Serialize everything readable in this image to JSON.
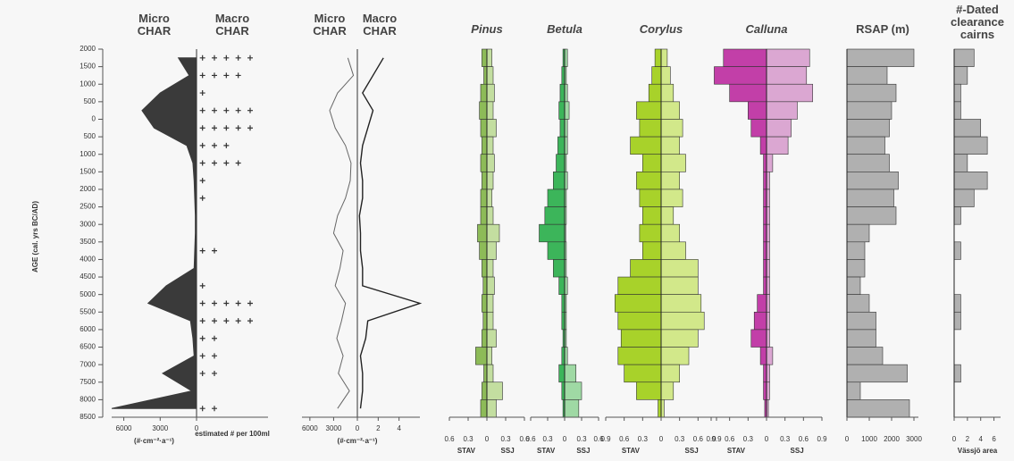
{
  "chart_data": [
    {
      "type": "char",
      "ylabel": "AGE (cal. yrs BC/AD)",
      "ylim": [
        -2000,
        8500
      ],
      "yticks": [
        {
          "value": -2000,
          "label": "2000"
        },
        {
          "value": -1500,
          "label": "1500"
        },
        {
          "value": -1000,
          "label": "1000"
        },
        {
          "value": -500,
          "label": "500"
        },
        0,
        500,
        1000,
        1500,
        2000,
        2500,
        3000,
        3500,
        4000,
        4500,
        5000,
        5500,
        6000,
        6500,
        7000,
        7500,
        8000,
        8500
      ],
      "y": [
        -1750,
        -1250,
        -750,
        -250,
        250,
        750,
        1250,
        1750,
        2250,
        2750,
        3250,
        3750,
        4250,
        4750,
        5250,
        5750,
        6250,
        6750,
        7250,
        7750,
        8250
      ],
      "series": [
        {
          "name": "Micro CHAR",
          "style": "area",
          "color": "#3a3a3a",
          "xlim": [
            0,
            7000
          ],
          "xticks": [
            6000,
            3000,
            0
          ],
          "xlabel": "(#·cm⁻²·a⁻¹)",
          "values": [
            1500,
            600,
            3000,
            4500,
            3500,
            800,
            300,
            200,
            150,
            100,
            100,
            150,
            200,
            2500,
            4000,
            500,
            300,
            200,
            2800,
            400,
            7000
          ]
        },
        {
          "name": "Macro CHAR",
          "style": "crosses",
          "color": "#333333",
          "xlim": [
            0,
            6
          ],
          "xlabel": "estimated # per 100ml",
          "values": [
            5,
            4,
            1,
            5,
            5,
            3,
            4,
            1,
            1,
            0,
            0,
            2,
            0,
            1,
            5,
            5,
            2,
            2,
            2,
            0,
            2
          ]
        }
      ]
    },
    {
      "type": "charline",
      "xlabel": "(#·cm⁻²·a⁻¹)",
      "y": [
        -1750,
        -1250,
        -750,
        -250,
        250,
        750,
        1250,
        1750,
        2250,
        2750,
        3250,
        3750,
        4250,
        4750,
        5250,
        5750,
        6250,
        6750,
        7250,
        7750,
        8250
      ],
      "series": [
        {
          "name": "Micro CHAR",
          "color": "#666666",
          "xlim": [
            0,
            7000
          ],
          "xticks": [
            6000,
            3000,
            0
          ],
          "values": [
            1200,
            500,
            2500,
            3500,
            2800,
            1500,
            800,
            900,
            1500,
            2500,
            3000,
            1800,
            2200,
            2800,
            1500,
            2000,
            2600,
            1800,
            2400,
            1000,
            2500
          ]
        },
        {
          "name": "Macro CHAR",
          "color": "#222222",
          "xlim": [
            0,
            6
          ],
          "xticks": [
            2,
            4
          ],
          "values": [
            2.5,
            1.5,
            0.5,
            1.5,
            1,
            0.5,
            0.3,
            0.5,
            0.5,
            0.2,
            0.3,
            0.3,
            0.5,
            0.5,
            6,
            1,
            0.8,
            0.3,
            0.5,
            0.5,
            0.3
          ]
        }
      ]
    },
    {
      "type": "pollen",
      "title": "Pinus",
      "xlim": [
        0,
        0.6
      ],
      "xticks": [
        0,
        0.3,
        0.6
      ],
      "y": [
        -1750,
        -1250,
        -750,
        -250,
        250,
        750,
        1250,
        1750,
        2250,
        2750,
        3250,
        3750,
        4250,
        4750,
        5250,
        5750,
        6250,
        6750,
        7250,
        7750,
        8250
      ],
      "series": [
        {
          "name": "STAV",
          "color": "#8dbb58",
          "values": [
            0.08,
            0.05,
            0.1,
            0.12,
            0.1,
            0.08,
            0.1,
            0.08,
            0.1,
            0.1,
            0.15,
            0.12,
            0.08,
            0.06,
            0.08,
            0.06,
            0.08,
            0.18,
            0.05,
            0.08,
            0.1
          ]
        },
        {
          "name": "SSJ",
          "color": "#c3dea0",
          "values": [
            0.08,
            0.1,
            0.12,
            0.1,
            0.15,
            0.1,
            0.12,
            0.1,
            0.08,
            0.1,
            0.2,
            0.15,
            0.1,
            0.12,
            0.1,
            0.1,
            0.15,
            0.08,
            0.1,
            0.25,
            0.15
          ]
        }
      ]
    },
    {
      "type": "pollen",
      "title": "Betula",
      "xlim": [
        0,
        0.6
      ],
      "xticks": [
        0,
        0.3,
        0.6
      ],
      "y": [
        -1750,
        -1250,
        -750,
        -250,
        250,
        750,
        1250,
        1750,
        2250,
        2750,
        3250,
        3750,
        4250,
        4750,
        5250,
        5750,
        6250,
        6750,
        7250,
        7750,
        8250
      ],
      "series": [
        {
          "name": "STAV",
          "color": "#3cb55a",
          "values": [
            0.03,
            0.05,
            0.08,
            0.1,
            0.08,
            0.12,
            0.15,
            0.2,
            0.3,
            0.35,
            0.45,
            0.3,
            0.2,
            0.1,
            0.05,
            0.05,
            0.03,
            0.05,
            0.1,
            0.05,
            0.03
          ]
        },
        {
          "name": "SSJ",
          "color": "#9fd9a4",
          "values": [
            0.05,
            0.03,
            0.05,
            0.08,
            0.05,
            0.05,
            0.03,
            0.05,
            0.03,
            0.03,
            0.02,
            0.03,
            0.03,
            0.05,
            0.03,
            0.03,
            0.03,
            0.05,
            0.2,
            0.3,
            0.25
          ]
        }
      ]
    },
    {
      "type": "pollen",
      "title": "Corylus",
      "xlim": [
        0,
        0.9
      ],
      "xticks": [
        0,
        0.3,
        0.6,
        0.9
      ],
      "y": [
        -1750,
        -1250,
        -750,
        -250,
        250,
        750,
        1250,
        1750,
        2250,
        2750,
        3250,
        3750,
        4250,
        4750,
        5250,
        5750,
        6250,
        6750,
        7250,
        7750,
        8250
      ],
      "series": [
        {
          "name": "STAV",
          "color": "#a8d22a",
          "values": [
            0.1,
            0.15,
            0.2,
            0.4,
            0.35,
            0.5,
            0.3,
            0.4,
            0.35,
            0.3,
            0.35,
            0.3,
            0.5,
            0.7,
            0.75,
            0.7,
            0.65,
            0.7,
            0.6,
            0.4,
            0.05
          ]
        },
        {
          "name": "SSJ",
          "color": "#d2e88a",
          "values": [
            0.1,
            0.15,
            0.2,
            0.3,
            0.35,
            0.3,
            0.4,
            0.3,
            0.35,
            0.2,
            0.3,
            0.4,
            0.6,
            0.6,
            0.65,
            0.7,
            0.6,
            0.45,
            0.3,
            0.2,
            0.05
          ]
        }
      ]
    },
    {
      "type": "pollen",
      "title": "Calluna",
      "xlim": [
        0,
        0.9
      ],
      "xticks": [
        0,
        0.3,
        0.6,
        0.9
      ],
      "y": [
        -1750,
        -1250,
        -750,
        -250,
        250,
        750,
        1250,
        1750,
        2250,
        2750,
        3250,
        3750,
        4250,
        4750,
        5250,
        5750,
        6250,
        6750,
        7250,
        7750,
        8250
      ],
      "series": [
        {
          "name": "STAV",
          "color": "#c23fa8",
          "values": [
            0.7,
            0.85,
            0.6,
            0.3,
            0.25,
            0.1,
            0.05,
            0.05,
            0.05,
            0.05,
            0.05,
            0.05,
            0.05,
            0.05,
            0.15,
            0.2,
            0.25,
            0.1,
            0.05,
            0.05,
            0.03
          ]
        },
        {
          "name": "SSJ",
          "color": "#dba7d2",
          "values": [
            0.7,
            0.65,
            0.75,
            0.5,
            0.4,
            0.35,
            0.1,
            0.05,
            0.05,
            0.05,
            0.05,
            0.05,
            0.05,
            0.05,
            0.05,
            0.05,
            0.05,
            0.1,
            0.05,
            0.05,
            0.03
          ]
        }
      ]
    },
    {
      "type": "bar",
      "title": "RSAP (m)",
      "color": "#b0b0b0",
      "xlim": [
        0,
        3200
      ],
      "xticks": [
        0,
        1000,
        2000,
        3000
      ],
      "y": [
        -1750,
        -1250,
        -750,
        -250,
        250,
        750,
        1250,
        1750,
        2250,
        2750,
        3250,
        3750,
        4250,
        4750,
        5250,
        5750,
        6250,
        6750,
        7250,
        7750,
        8250
      ],
      "values": [
        3000,
        1800,
        2200,
        2000,
        1900,
        1700,
        1900,
        2300,
        2100,
        2200,
        1000,
        800,
        800,
        600,
        1000,
        1300,
        1300,
        1600,
        2700,
        600,
        2800
      ]
    },
    {
      "type": "bar",
      "title": "#-Dated clearance cairns",
      "xlabel": "Vässjö area",
      "color": "#b0b0b0",
      "xlim": [
        0,
        7
      ],
      "xticks": [
        0,
        2,
        4,
        6
      ],
      "y": [
        -1750,
        -1250,
        -750,
        -250,
        250,
        750,
        1250,
        1750,
        2250,
        2750,
        3250,
        3750,
        4250,
        4750,
        5250,
        5750,
        6250,
        6750,
        7250,
        7750,
        8250
      ],
      "values": [
        3,
        2,
        1,
        1,
        4,
        5,
        2,
        5,
        3,
        1,
        0,
        1,
        0,
        0,
        1,
        1,
        0,
        0,
        1,
        0,
        0
      ]
    }
  ]
}
